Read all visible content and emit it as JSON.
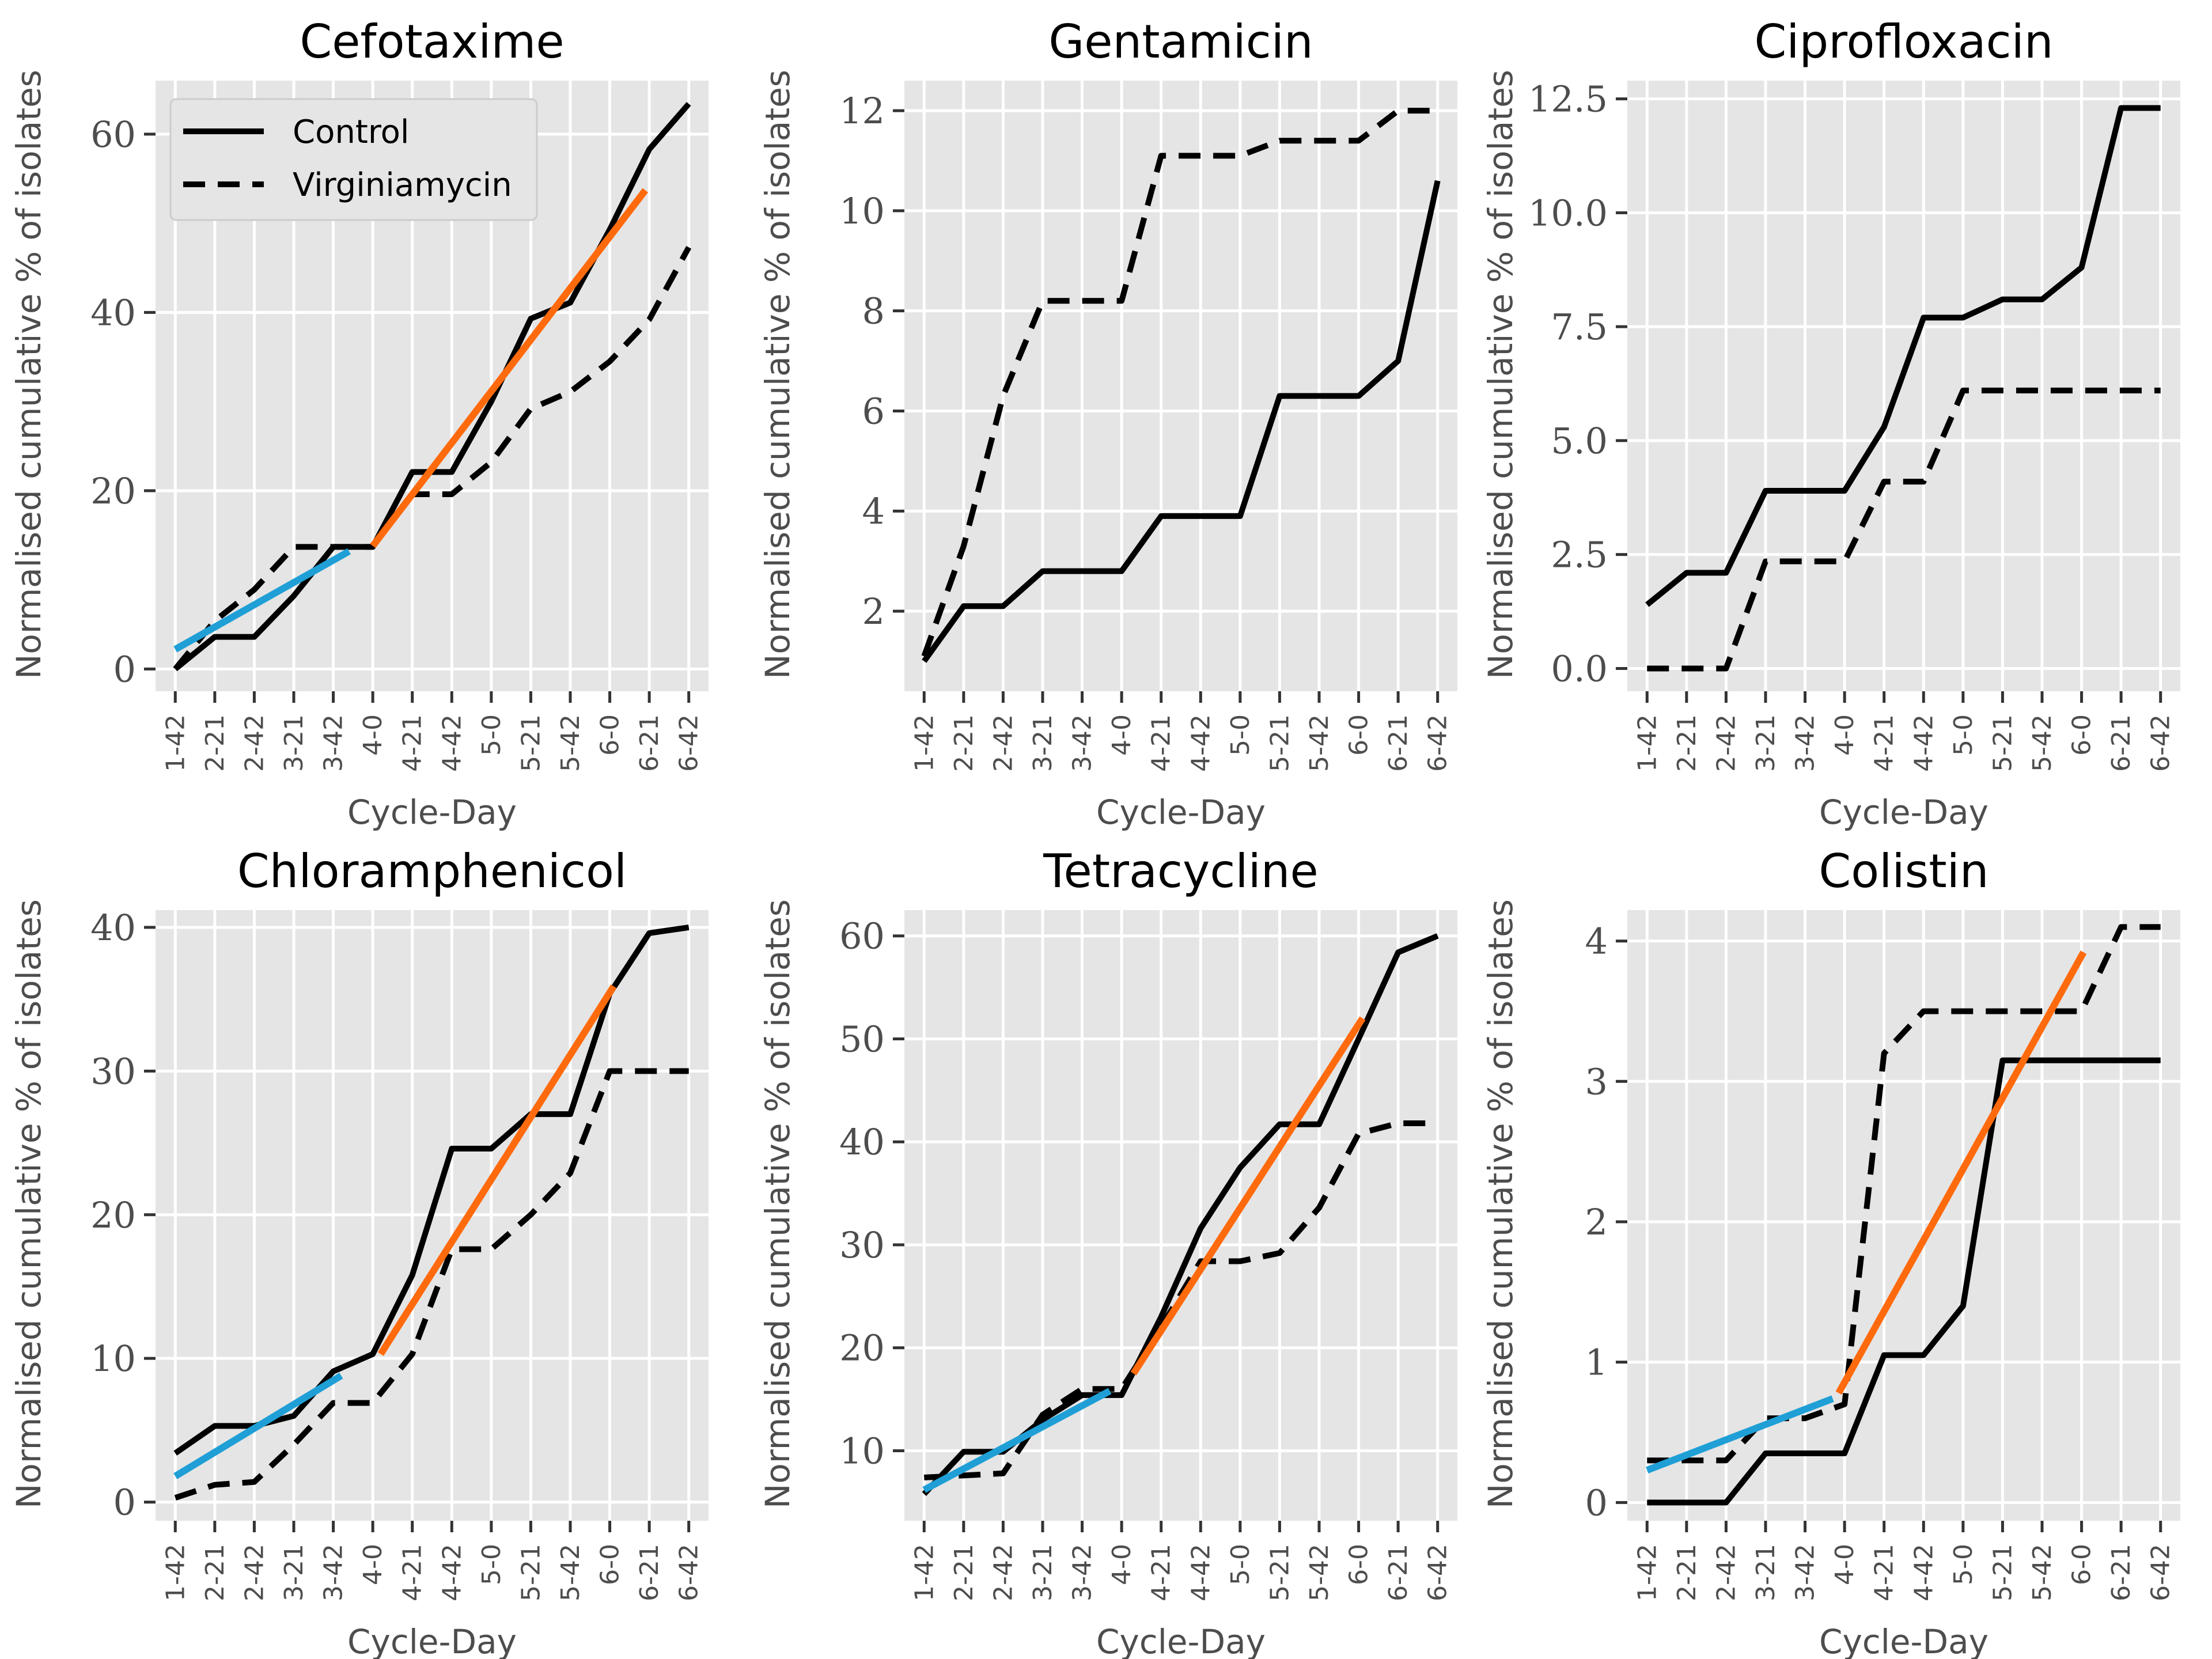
{
  "chart_data": [
    {
      "type": "line",
      "title": "Cefotaxime",
      "xlabel": "Cycle-Day",
      "ylabel": "Normalised cumulative % of isolates",
      "categories": [
        "1-42",
        "2-21",
        "2-42",
        "3-21",
        "3-42",
        "4-0",
        "4-21",
        "4-42",
        "5-0",
        "5-21",
        "5-42",
        "6-0",
        "6-21",
        "6-42"
      ],
      "ylim": [
        -2.5,
        66
      ],
      "yticks": [
        0,
        20,
        40,
        60
      ],
      "ytick_labels": [
        "0",
        "20",
        "40",
        "60"
      ],
      "grid": true,
      "legend": "top-left",
      "series": [
        {
          "name": "Control",
          "style": "solid",
          "values": [
            0,
            3.6,
            3.6,
            8.2,
            13.7,
            13.7,
            22.1,
            22.1,
            30,
            39.3,
            41.1,
            49.3,
            58.3,
            63.4
          ]
        },
        {
          "name": "Virginiamycin",
          "style": "dashed",
          "values": [
            0,
            5.4,
            8.9,
            13.7,
            13.7,
            13.7,
            19.6,
            19.6,
            23.2,
            29.2,
            31.1,
            34.5,
            39.2,
            47.3
          ]
        }
      ],
      "fits": [
        {
          "color": "#1f9fd6",
          "x": [
            0,
            4.4
          ],
          "y": [
            2.2,
            13.2
          ]
        },
        {
          "color": "#ff6a0d",
          "x": [
            5,
            11.9
          ],
          "y": [
            13.8,
            53.7
          ]
        }
      ]
    },
    {
      "type": "line",
      "title": "Gentamicin",
      "xlabel": "Cycle-Day",
      "ylabel": "Normalised cumulative % of isolates",
      "categories": [
        "1-42",
        "2-21",
        "2-42",
        "3-21",
        "3-42",
        "4-0",
        "4-21",
        "4-42",
        "5-0",
        "5-21",
        "5-42",
        "6-0",
        "6-21",
        "6-42"
      ],
      "ylim": [
        0.4,
        12.6
      ],
      "yticks": [
        2,
        4,
        6,
        8,
        10,
        12
      ],
      "ytick_labels": [
        "2",
        "4",
        "6",
        "8",
        "10",
        "12"
      ],
      "grid": true,
      "series": [
        {
          "name": "Control",
          "style": "solid",
          "values": [
            1,
            2.1,
            2.1,
            2.8,
            2.8,
            2.8,
            3.9,
            3.9,
            3.9,
            6.3,
            6.3,
            6.3,
            7,
            10.6
          ]
        },
        {
          "name": "Virginiamycin",
          "style": "dashed",
          "values": [
            1.1,
            3.3,
            6.3,
            8.2,
            8.2,
            8.2,
            11.1,
            11.1,
            11.1,
            11.4,
            11.4,
            11.4,
            12,
            12
          ]
        }
      ]
    },
    {
      "type": "line",
      "title": "Ciprofloxacin",
      "xlabel": "Cycle-Day",
      "ylabel": "Normalised cumulative % of isolates",
      "categories": [
        "1-42",
        "2-21",
        "2-42",
        "3-21",
        "3-42",
        "4-0",
        "4-21",
        "4-42",
        "5-0",
        "5-21",
        "5-42",
        "6-0",
        "6-21",
        "6-42"
      ],
      "ylim": [
        -0.5,
        12.9
      ],
      "yticks": [
        0,
        2.5,
        5,
        7.5,
        10,
        12.5
      ],
      "ytick_labels": [
        "0.0",
        "2.5",
        "5.0",
        "7.5",
        "10.0",
        "12.5"
      ],
      "grid": true,
      "series": [
        {
          "name": "Control",
          "style": "solid",
          "values": [
            1.4,
            2.1,
            2.1,
            3.9,
            3.9,
            3.9,
            5.3,
            7.7,
            7.7,
            8.1,
            8.1,
            8.8,
            12.3,
            12.3
          ]
        },
        {
          "name": "Virginiamycin",
          "style": "dashed",
          "values": [
            0,
            0,
            0,
            2.35,
            2.35,
            2.35,
            4.1,
            4.1,
            6.1,
            6.1,
            6.1,
            6.1,
            6.1,
            6.1
          ]
        }
      ]
    },
    {
      "type": "line",
      "title": "Chloramphenicol",
      "xlabel": "Cycle-Day",
      "ylabel": "Normalised cumulative % of isolates",
      "categories": [
        "1-42",
        "2-21",
        "2-42",
        "3-21",
        "3-42",
        "4-0",
        "4-21",
        "4-42",
        "5-0",
        "5-21",
        "5-42",
        "6-0",
        "6-21",
        "6-42"
      ],
      "ylim": [
        -1.3,
        41.2
      ],
      "yticks": [
        0,
        10,
        20,
        30,
        40
      ],
      "ytick_labels": [
        "0",
        "10",
        "20",
        "30",
        "40"
      ],
      "grid": true,
      "series": [
        {
          "name": "Control",
          "style": "solid",
          "values": [
            3.4,
            5.3,
            5.3,
            6,
            9.1,
            10.3,
            15.8,
            24.6,
            24.6,
            27,
            27,
            35.4,
            39.6,
            40
          ]
        },
        {
          "name": "Virginiamycin",
          "style": "dashed",
          "values": [
            0.3,
            1.2,
            1.4,
            4,
            6.9,
            6.9,
            10.3,
            17.6,
            17.6,
            20,
            22.9,
            30,
            30,
            30
          ]
        }
      ],
      "fits": [
        {
          "color": "#1f9fd6",
          "x": [
            0,
            4.2
          ],
          "y": [
            1.8,
            8.8
          ]
        },
        {
          "color": "#ff6a0d",
          "x": [
            5.2,
            11.1
          ],
          "y": [
            10.3,
            35.9
          ]
        }
      ]
    },
    {
      "type": "line",
      "title": "Tetracycline",
      "xlabel": "Cycle-Day",
      "ylabel": "Normalised cumulative % of isolates",
      "categories": [
        "1-42",
        "2-21",
        "2-42",
        "3-21",
        "3-42",
        "4-0",
        "4-21",
        "4-42",
        "5-0",
        "5-21",
        "5-42",
        "6-0",
        "6-21",
        "6-42"
      ],
      "ylim": [
        3.2,
        62.5
      ],
      "yticks": [
        10,
        20,
        30,
        40,
        50,
        60
      ],
      "ytick_labels": [
        "10",
        "20",
        "30",
        "40",
        "50",
        "60"
      ],
      "grid": true,
      "series": [
        {
          "name": "Control",
          "style": "solid",
          "values": [
            5.8,
            9.9,
            9.9,
            13,
            15.4,
            15.4,
            23,
            31.6,
            37.5,
            41.7,
            41.7,
            50,
            58.4,
            60
          ]
        },
        {
          "name": "Virginiamycin",
          "style": "dashed",
          "values": [
            7.4,
            7.6,
            7.8,
            13.5,
            16,
            16,
            22,
            28.4,
            28.4,
            29.2,
            33.6,
            40.8,
            41.8,
            41.8
          ]
        }
      ],
      "fits": [
        {
          "color": "#1f9fd6",
          "x": [
            0,
            4.7
          ],
          "y": [
            6.2,
            15.8
          ]
        },
        {
          "color": "#ff6a0d",
          "x": [
            5.3,
            11.1
          ],
          "y": [
            17.5,
            52
          ]
        }
      ]
    },
    {
      "type": "line",
      "title": "Colistin",
      "xlabel": "Cycle-Day",
      "ylabel": "Normalised cumulative % of isolates",
      "categories": [
        "1-42",
        "2-21",
        "2-42",
        "3-21",
        "3-42",
        "4-0",
        "4-21",
        "4-42",
        "5-0",
        "5-21",
        "5-42",
        "6-0",
        "6-21",
        "6-42"
      ],
      "ylim": [
        -0.13,
        4.22
      ],
      "yticks": [
        0,
        1,
        2,
        3,
        4
      ],
      "ytick_labels": [
        "0",
        "1",
        "2",
        "3",
        "4"
      ],
      "grid": true,
      "series": [
        {
          "name": "Control",
          "style": "solid",
          "values": [
            0,
            0,
            0,
            0.35,
            0.35,
            0.35,
            1.05,
            1.05,
            1.4,
            3.15,
            3.15,
            3.15,
            3.15,
            3.15
          ]
        },
        {
          "name": "Virginiamycin",
          "style": "dashed",
          "values": [
            0.3,
            0.3,
            0.3,
            0.6,
            0.6,
            0.7,
            3.2,
            3.5,
            3.5,
            3.5,
            3.5,
            3.5,
            4.1,
            4.1
          ]
        }
      ],
      "fits": [
        {
          "color": "#1f9fd6",
          "x": [
            0,
            4.7
          ],
          "y": [
            0.23,
            0.74
          ]
        },
        {
          "color": "#ff6a0d",
          "x": [
            4.85,
            11.05
          ],
          "y": [
            0.78,
            3.92
          ]
        }
      ]
    }
  ]
}
